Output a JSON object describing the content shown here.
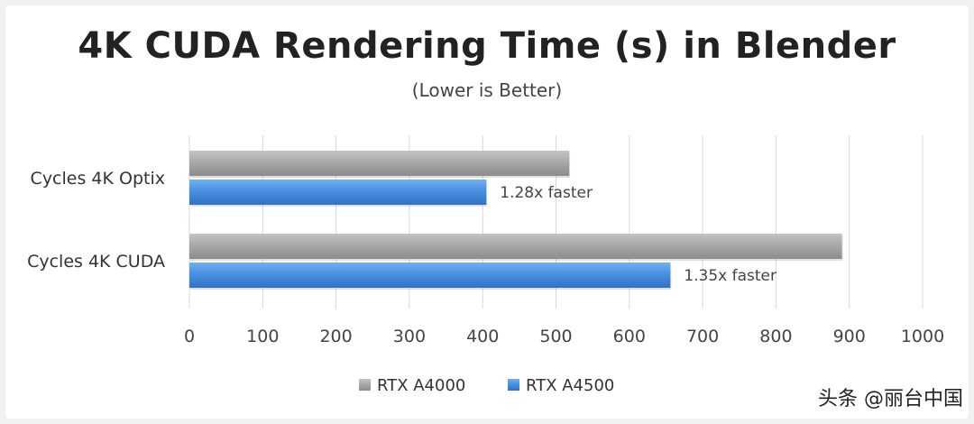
{
  "chart_data": {
    "type": "bar",
    "orientation": "horizontal",
    "title": "4K CUDA Rendering Time (s) in Blender",
    "subtitle": "(Lower is Better)",
    "categories": [
      "Cycles 4K Optix",
      "Cycles 4K CUDA"
    ],
    "series": [
      {
        "name": "RTX A4000",
        "values": [
          518,
          890
        ],
        "color": "#a6a6a6"
      },
      {
        "name": "RTX A4500",
        "values": [
          405,
          656
        ],
        "color": "#4a90e2"
      }
    ],
    "annotations": [
      "1.28x faster",
      "1.35x faster"
    ],
    "xlim": [
      0,
      1000
    ],
    "xticks": [
      0,
      100,
      200,
      300,
      400,
      500,
      600,
      700,
      800,
      900,
      1000
    ],
    "grid": true,
    "legend": "bottom"
  },
  "watermark": "头条 @丽台中国"
}
